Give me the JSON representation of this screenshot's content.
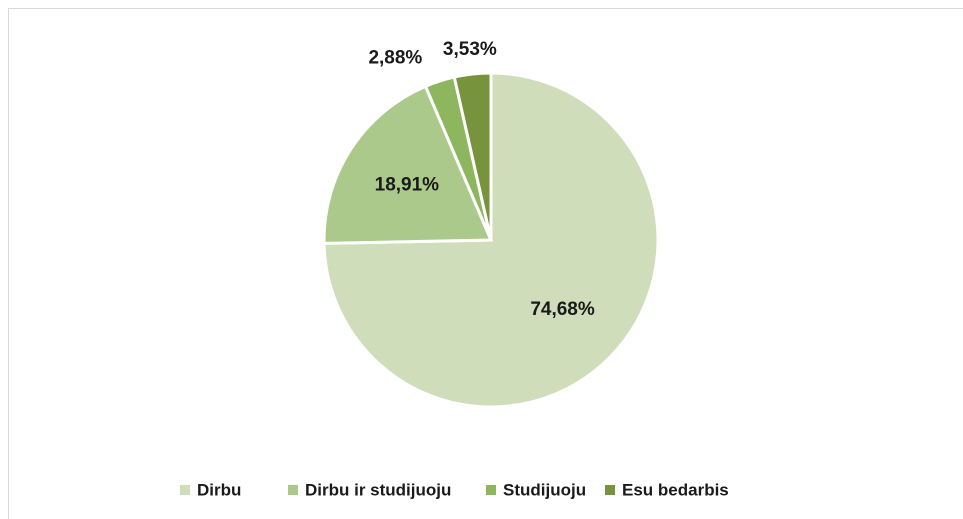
{
  "chart_data": {
    "type": "pie",
    "categories": [
      "Dirbu",
      "Dirbu ir studijuoju",
      "Studijuoju",
      "Esu bedarbis"
    ],
    "values": [
      74.68,
      18.91,
      2.88,
      3.53
    ],
    "value_labels": [
      "74,68%",
      "18,91%",
      "2,88%",
      "3,53%"
    ],
    "colors": [
      "#d0ddbb",
      "#aac98a",
      "#8db65e",
      "#77933c"
    ],
    "legend": "bottom"
  }
}
